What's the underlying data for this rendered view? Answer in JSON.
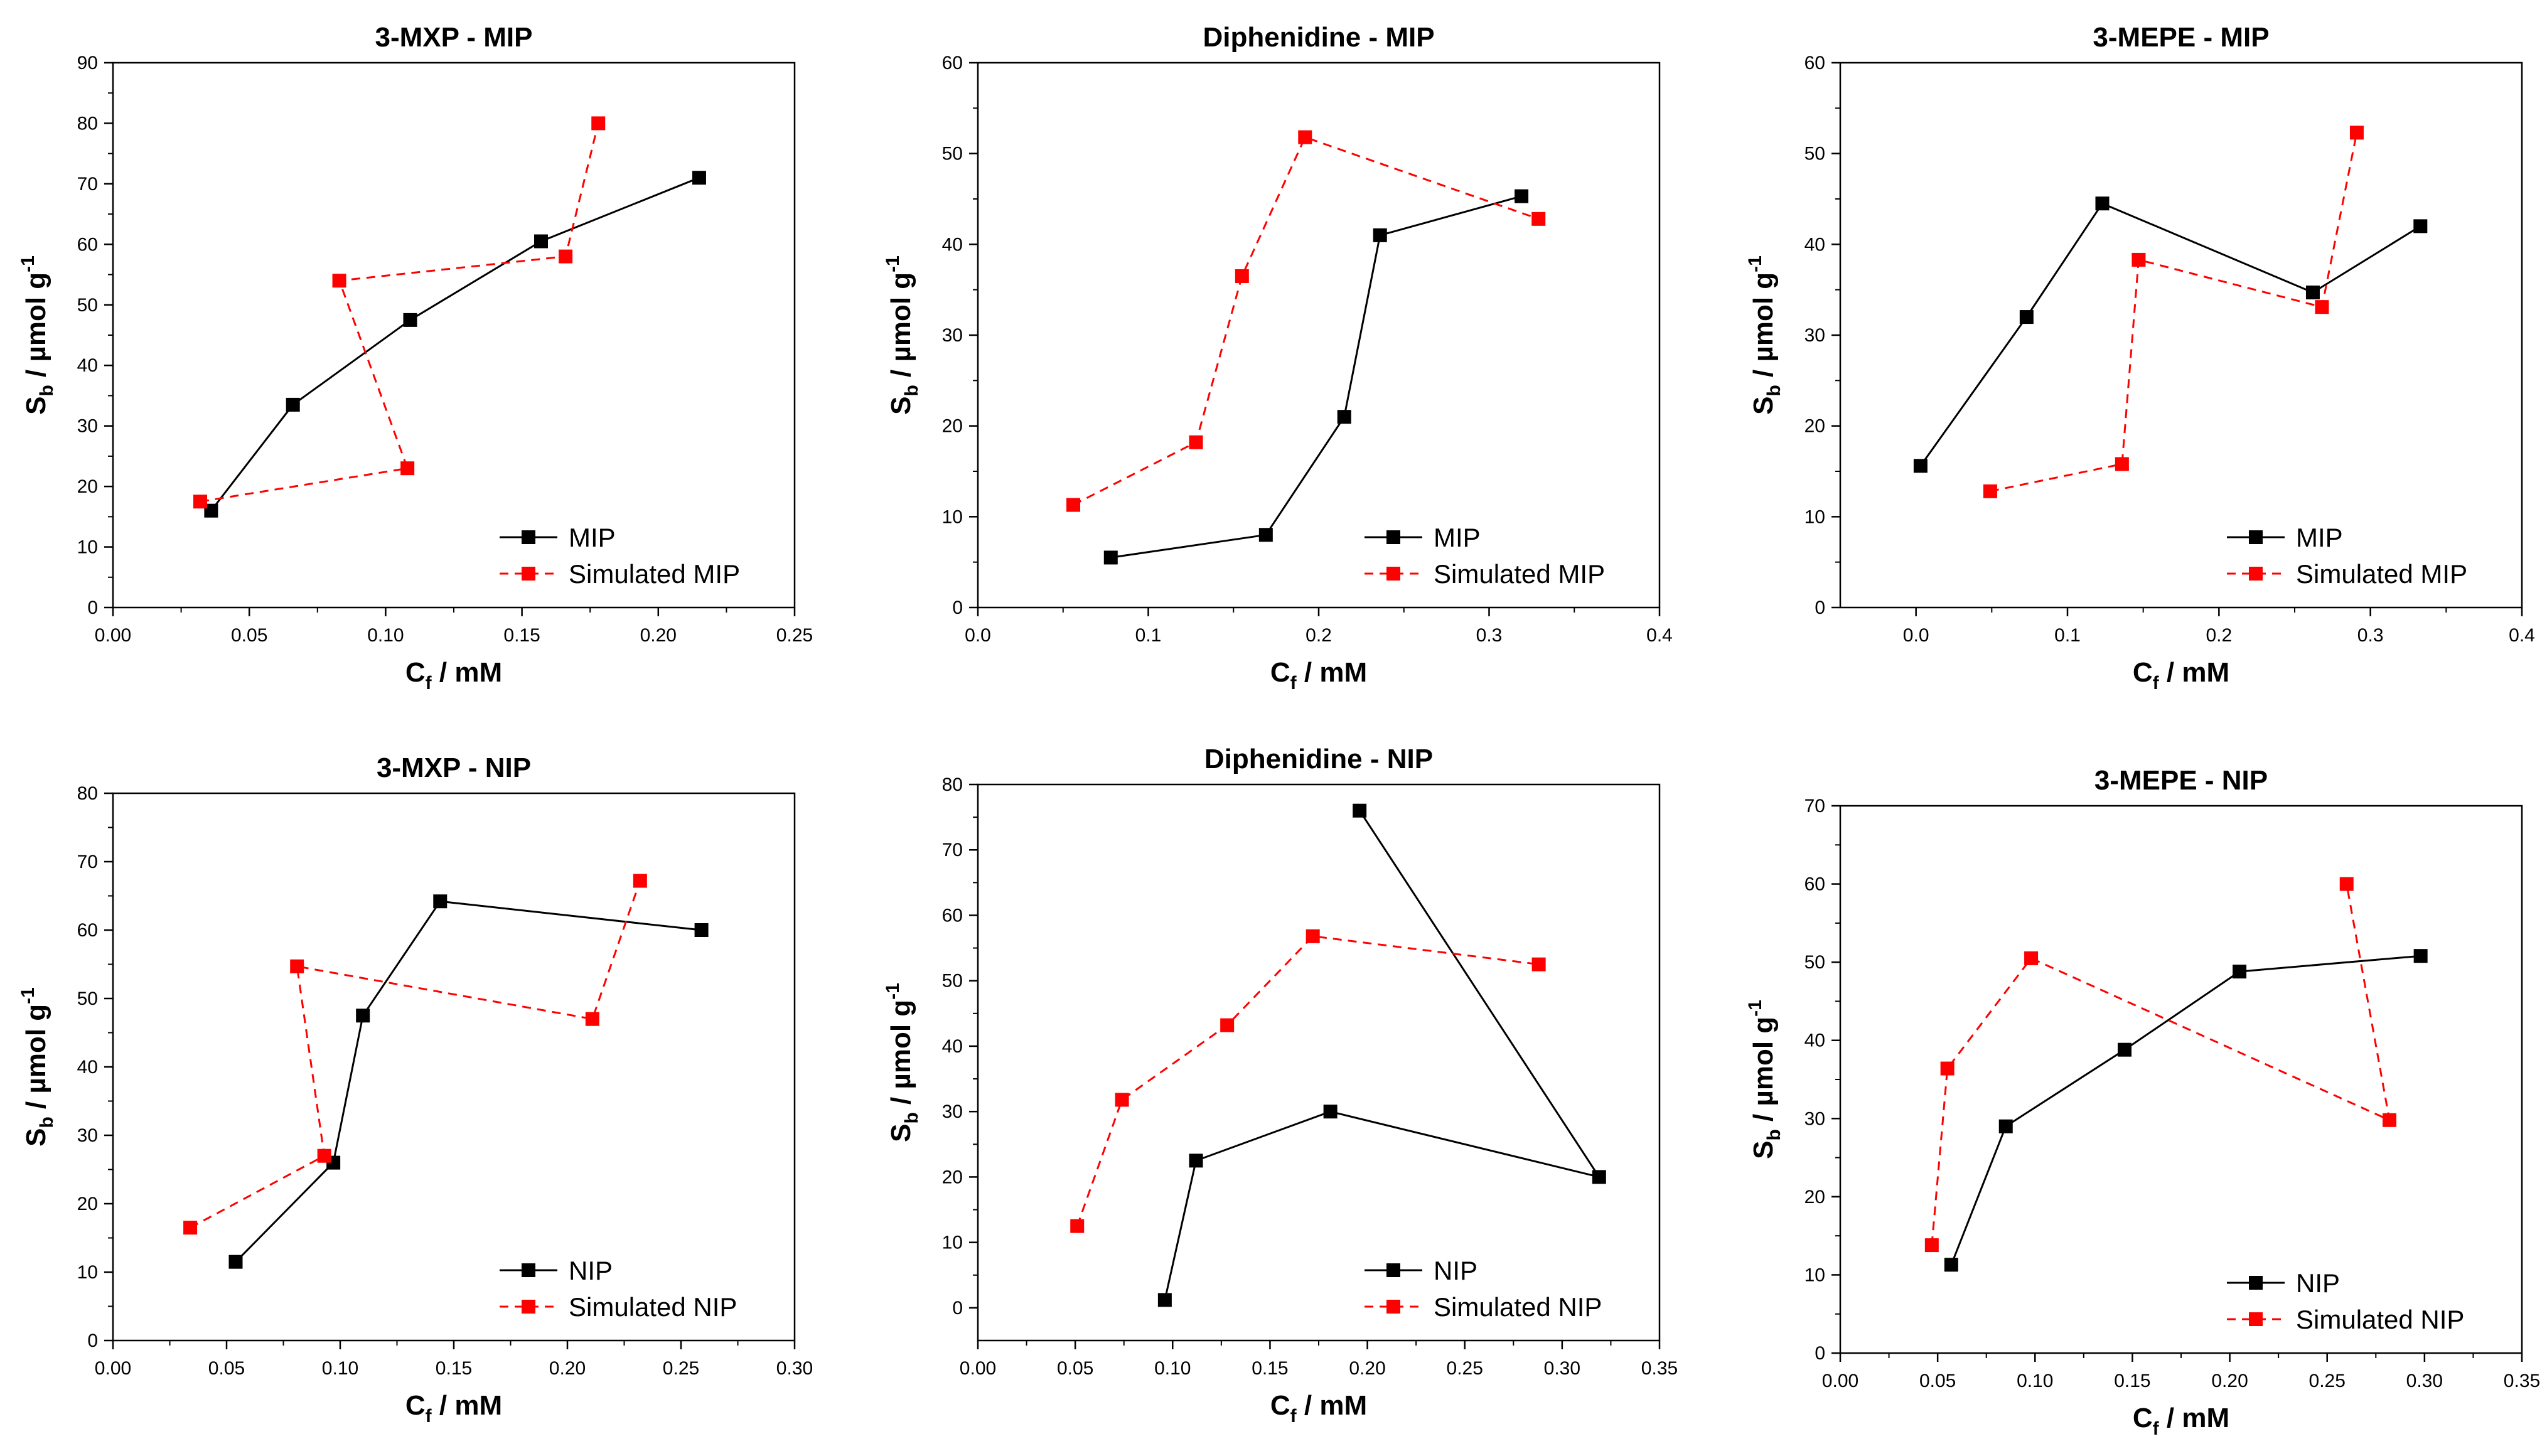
{
  "chart_data": [
    {
      "type": "line",
      "title": "3-MXP - MIP",
      "xlabel": "C",
      "xlabel_sub": "f",
      "xlabel_unit": " / mM",
      "ylabel": "S",
      "ylabel_sub": "b",
      "ylabel_unit": " / µmol g",
      "ylabel_sup": "-1",
      "xlim": [
        0,
        0.25
      ],
      "ylim": [
        0,
        90
      ],
      "xticks": [
        "0.00",
        "0.05",
        "0.10",
        "0.15",
        "0.20",
        "0.25"
      ],
      "yticks": [
        "0",
        "10",
        "20",
        "30",
        "40",
        "50",
        "60",
        "70",
        "80",
        "90"
      ],
      "legend_position": "bottom-right",
      "series": [
        {
          "name": "MIP",
          "color": "#000000",
          "dash": "solid",
          "x": [
            0.036,
            0.066,
            0.109,
            0.157,
            0.215
          ],
          "y": [
            16,
            33.5,
            47.5,
            60.5,
            71
          ]
        },
        {
          "name": "Simulated MIP",
          "color": "#ff0000",
          "dash": "dashed",
          "x": [
            0.032,
            0.108,
            0.083,
            0.166,
            0.178
          ],
          "y": [
            17.5,
            23,
            54,
            58,
            80
          ]
        }
      ]
    },
    {
      "type": "line",
      "title": "Diphenidine - MIP",
      "xlabel": "C",
      "xlabel_sub": "f",
      "xlabel_unit": " / mM",
      "ylabel": "S",
      "ylabel_sub": "b",
      "ylabel_unit": " / µmol g",
      "ylabel_sup": "-1",
      "xlim": [
        0,
        0.4
      ],
      "ylim": [
        0,
        60
      ],
      "xticks": [
        "0.0",
        "0.1",
        "0.2",
        "0.3",
        "0.4"
      ],
      "yticks": [
        "0",
        "10",
        "20",
        "30",
        "40",
        "50",
        "60"
      ],
      "legend_position": "bottom-right",
      "series": [
        {
          "name": "MIP",
          "color": "#000000",
          "dash": "solid",
          "x": [
            0.078,
            0.169,
            0.215,
            0.236,
            0.319
          ],
          "y": [
            5.5,
            8,
            21,
            41,
            45.3
          ]
        },
        {
          "name": "Simulated MIP",
          "color": "#ff0000",
          "dash": "dashed",
          "x": [
            0.056,
            0.128,
            0.155,
            0.192,
            0.329
          ],
          "y": [
            11.3,
            18.2,
            36.5,
            51.8,
            42.8
          ]
        }
      ]
    },
    {
      "type": "line",
      "title": "3-MEPE - MIP",
      "xlabel": "C",
      "xlabel_sub": "f",
      "xlabel_unit": " / mM",
      "ylabel": "S",
      "ylabel_sub": "b",
      "ylabel_unit": " / µmol g",
      "ylabel_sup": "-1",
      "xlim": [
        -0.05,
        0.4
      ],
      "ylim": [
        0,
        60
      ],
      "xticks": [
        "0.0",
        "0.1",
        "0.2",
        "0.3",
        "0.4"
      ],
      "yticks": [
        "0",
        "10",
        "20",
        "30",
        "40",
        "50",
        "60"
      ],
      "legend_position": "bottom-right",
      "series": [
        {
          "name": "MIP",
          "color": "#000000",
          "dash": "solid",
          "x": [
            0.003,
            0.073,
            0.123,
            0.262,
            0.333
          ],
          "y": [
            15.6,
            32,
            44.5,
            34.7,
            42
          ]
        },
        {
          "name": "Simulated MIP",
          "color": "#ff0000",
          "dash": "dashed",
          "x": [
            0.049,
            0.136,
            0.147,
            0.268,
            0.291
          ],
          "y": [
            12.8,
            15.8,
            38.3,
            33.1,
            52.3
          ]
        }
      ]
    },
    {
      "type": "line",
      "title": "3-MXP - NIP",
      "xlabel": "C",
      "xlabel_sub": "f",
      "xlabel_unit": " / mM",
      "ylabel": "S",
      "ylabel_sub": "b",
      "ylabel_unit": " / µmol g",
      "ylabel_sup": "-1",
      "xlim": [
        0,
        0.3
      ],
      "ylim": [
        0,
        80
      ],
      "xticks": [
        "0.00",
        "0.05",
        "0.10",
        "0.15",
        "0.20",
        "0.25",
        "0.30"
      ],
      "yticks": [
        "0",
        "10",
        "20",
        "30",
        "40",
        "50",
        "60",
        "70",
        "80"
      ],
      "legend_position": "bottom-right",
      "series": [
        {
          "name": "NIP",
          "color": "#000000",
          "dash": "solid",
          "x": [
            0.054,
            0.097,
            0.11,
            0.144,
            0.259
          ],
          "y": [
            11.5,
            26,
            47.5,
            64.2,
            60
          ]
        },
        {
          "name": "Simulated NIP",
          "color": "#ff0000",
          "dash": "dashed",
          "x": [
            0.034,
            0.093,
            0.081,
            0.211,
            0.232
          ],
          "y": [
            16.5,
            27,
            54.7,
            47,
            67.2
          ]
        }
      ]
    },
    {
      "type": "line",
      "title": "Diphenidine - NIP",
      "xlabel": "C",
      "xlabel_sub": "f",
      "xlabel_unit": " / mM",
      "ylabel": "S",
      "ylabel_sub": "b",
      "ylabel_unit": " / µmol g",
      "ylabel_sup": "-1",
      "xlim": [
        0,
        0.35
      ],
      "ylim": [
        -5,
        80
      ],
      "xticks": [
        "0.00",
        "0.05",
        "0.10",
        "0.15",
        "0.20",
        "0.25",
        "0.30",
        "0.35"
      ],
      "yticks": [
        "0",
        "10",
        "20",
        "30",
        "40",
        "50",
        "60",
        "70",
        "80"
      ],
      "legend_position": "bottom-right",
      "series": [
        {
          "name": "NIP",
          "color": "#000000",
          "dash": "solid",
          "x": [
            0.096,
            0.112,
            0.181,
            0.319,
            0.196
          ],
          "y": [
            1.2,
            22.5,
            30,
            20,
            76
          ]
        },
        {
          "name": "Simulated NIP",
          "color": "#ff0000",
          "dash": "dashed",
          "x": [
            0.051,
            0.074,
            0.128,
            0.172,
            0.288
          ],
          "y": [
            12.5,
            31.8,
            43.2,
            56.8,
            52.5
          ]
        }
      ]
    },
    {
      "type": "line",
      "title": "3-MEPE - NIP",
      "xlabel": "C",
      "xlabel_sub": "f",
      "xlabel_unit": " / mM",
      "ylabel": "S",
      "ylabel_sub": "b",
      "ylabel_unit": " / µmol g",
      "ylabel_sup": "-1",
      "xlim": [
        0,
        0.35
      ],
      "ylim": [
        0,
        70
      ],
      "xticks": [
        "0.00",
        "0.05",
        "0.10",
        "0.15",
        "0.20",
        "0.25",
        "0.30",
        "0.35"
      ],
      "yticks": [
        "0",
        "10",
        "20",
        "30",
        "40",
        "50",
        "60",
        "70"
      ],
      "legend_position": "bottom-right",
      "series": [
        {
          "name": "NIP",
          "color": "#000000",
          "dash": "solid",
          "x": [
            0.057,
            0.085,
            0.146,
            0.205,
            0.298
          ],
          "y": [
            11.3,
            29,
            38.8,
            48.8,
            50.8
          ]
        },
        {
          "name": "Simulated NIP",
          "color": "#ff0000",
          "dash": "dashed",
          "x": [
            0.047,
            0.055,
            0.098,
            0.282,
            0.26
          ],
          "y": [
            13.8,
            36.4,
            50.5,
            29.8,
            60
          ]
        }
      ]
    }
  ]
}
